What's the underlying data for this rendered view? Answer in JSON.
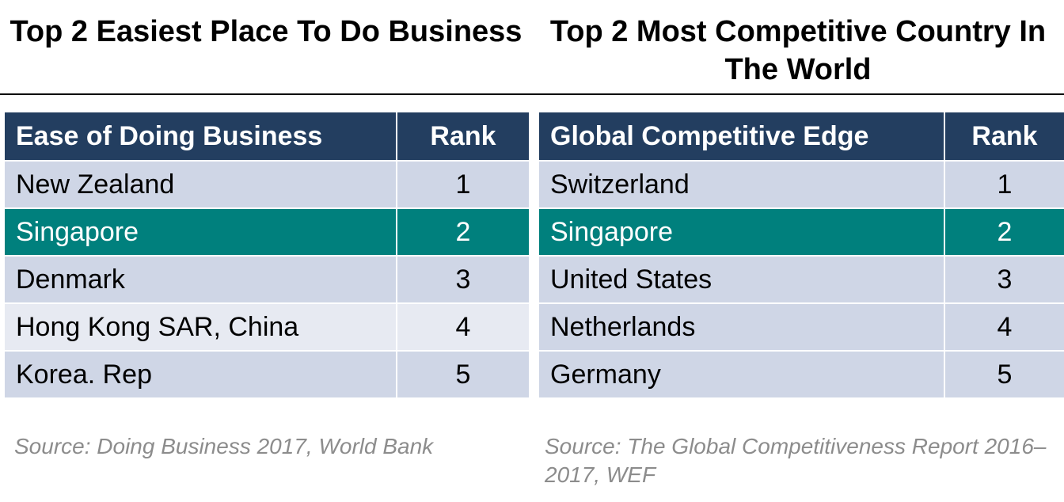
{
  "left": {
    "title": "Top 2 Easiest Place To Do Business",
    "header": {
      "name": "Ease of Doing Business",
      "rank": "Rank"
    },
    "rows": [
      {
        "name": "New Zealand",
        "rank": "1"
      },
      {
        "name": "Singapore",
        "rank": "2",
        "highlight": true
      },
      {
        "name": "Denmark",
        "rank": "3"
      },
      {
        "name": "Hong Kong SAR, China",
        "rank": "4"
      },
      {
        "name": "Korea. Rep",
        "rank": "5"
      }
    ],
    "source": "Source: Doing Business 2017, World Bank"
  },
  "right": {
    "title": "Top 2 Most Competitive Country In The World",
    "header": {
      "name": "Global Competitive Edge",
      "rank": "Rank"
    },
    "rows": [
      {
        "name": "Switzerland",
        "rank": "1"
      },
      {
        "name": "Singapore",
        "rank": "2",
        "highlight": true
      },
      {
        "name": "United States",
        "rank": "3"
      },
      {
        "name": "Netherlands",
        "rank": "4"
      },
      {
        "name": "Germany",
        "rank": "5"
      }
    ],
    "source": "Source: The Global Competitiveness Report 2016–2017, WEF"
  },
  "colors": {
    "header_bg": "#233e60",
    "row_alt_1": "#cfd6e6",
    "row_alt_2": "#e7eaf2",
    "highlight": "#00807d",
    "source_text": "#8c8c8c"
  }
}
